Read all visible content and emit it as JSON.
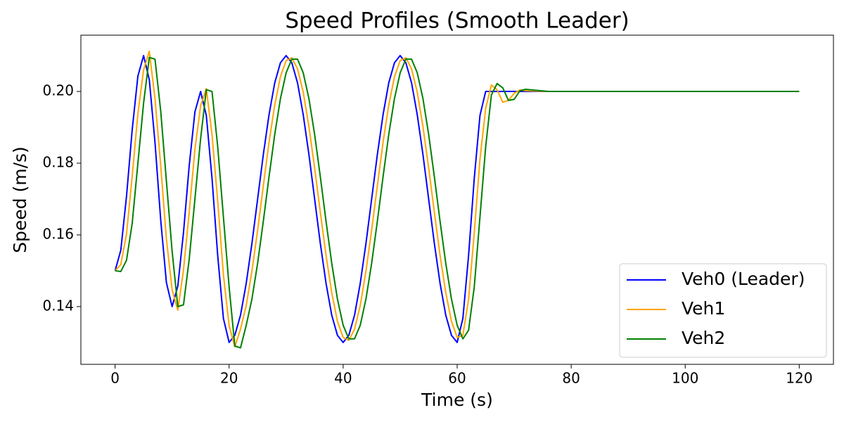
{
  "chart_data": {
    "type": "line",
    "title": "Speed Profiles (Smooth Leader)",
    "x_label": "Time (s)",
    "y_label": "Speed (m/s)",
    "x": [
      0,
      1,
      2,
      3,
      4,
      5,
      6,
      7,
      8,
      9,
      10,
      11,
      12,
      13,
      14,
      15,
      16,
      17,
      18,
      19,
      20,
      21,
      22,
      23,
      24,
      25,
      26,
      27,
      28,
      29,
      30,
      31,
      32,
      33,
      34,
      35,
      36,
      37,
      38,
      39,
      40,
      41,
      42,
      43,
      44,
      45,
      46,
      47,
      48,
      49,
      50,
      51,
      52,
      53,
      54,
      55,
      56,
      57,
      58,
      59,
      60,
      61,
      62,
      63,
      64,
      65,
      66,
      67,
      68,
      69,
      70,
      71,
      72,
      76,
      80,
      100,
      120
    ],
    "series": [
      {
        "name": "Veh0 (Leader)",
        "color": "#0000ff",
        "values": [
          0.15,
          0.1557,
          0.1707,
          0.1893,
          0.2043,
          0.21,
          0.2033,
          0.1858,
          0.1642,
          0.1467,
          0.14,
          0.1457,
          0.1607,
          0.1793,
          0.1943,
          0.2,
          0.1933,
          0.1758,
          0.1542,
          0.1367,
          0.13,
          0.132,
          0.1376,
          0.1465,
          0.1576,
          0.17,
          0.1824,
          0.1935,
          0.2024,
          0.208,
          0.21,
          0.208,
          0.2024,
          0.1935,
          0.1824,
          0.17,
          0.1576,
          0.1465,
          0.1376,
          0.132,
          0.13,
          0.132,
          0.1376,
          0.1465,
          0.1576,
          0.17,
          0.1824,
          0.1935,
          0.2024,
          0.208,
          0.21,
          0.208,
          0.2024,
          0.1935,
          0.1824,
          0.17,
          0.1576,
          0.1465,
          0.1376,
          0.132,
          0.13,
          0.1367,
          0.1542,
          0.1758,
          0.1933,
          0.2,
          0.2,
          0.2,
          0.2,
          0.2,
          0.2,
          0.2,
          0.2,
          0.2,
          0.2,
          0.2,
          0.2
        ]
      },
      {
        "name": "Veh1",
        "color": "#ffa500",
        "values": [
          0.15,
          0.1517,
          0.1602,
          0.1763,
          0.1938,
          0.206,
          0.2112,
          0.198,
          0.1794,
          0.1589,
          0.1447,
          0.139,
          0.1502,
          0.1663,
          0.1838,
          0.196,
          0.2008,
          0.188,
          0.1694,
          0.1489,
          0.1347,
          0.1288,
          0.1337,
          0.1403,
          0.1499,
          0.1613,
          0.1737,
          0.1858,
          0.1962,
          0.2041,
          0.2086,
          0.2094,
          0.2063,
          0.1998,
          0.1902,
          0.1787,
          0.1663,
          0.1543,
          0.1439,
          0.1359,
          0.1314,
          0.1306,
          0.1337,
          0.1403,
          0.1499,
          0.1613,
          0.1737,
          0.1858,
          0.1962,
          0.2041,
          0.2086,
          0.2094,
          0.2063,
          0.1998,
          0.1902,
          0.1787,
          0.1663,
          0.1543,
          0.1439,
          0.1359,
          0.1314,
          0.132,
          0.142,
          0.1606,
          0.1811,
          0.1953,
          0.2018,
          0.2005,
          0.197,
          0.1975,
          0.1995,
          0.2004,
          0.2002,
          0.2,
          0.2,
          0.2,
          0.2
        ]
      },
      {
        "name": "Veh2",
        "color": "#008000",
        "values": [
          0.15,
          0.1498,
          0.1529,
          0.1632,
          0.18,
          0.1968,
          0.2095,
          0.209,
          0.1946,
          0.175,
          0.1555,
          0.14,
          0.1405,
          0.1532,
          0.17,
          0.1868,
          0.2005,
          0.2,
          0.1846,
          0.165,
          0.1455,
          0.129,
          0.1285,
          0.1348,
          0.1421,
          0.1521,
          0.1638,
          0.1762,
          0.188,
          0.198,
          0.2052,
          0.209,
          0.209,
          0.2052,
          0.198,
          0.188,
          0.1762,
          0.1638,
          0.1521,
          0.1421,
          0.1348,
          0.131,
          0.131,
          0.1348,
          0.1421,
          0.1521,
          0.1638,
          0.1762,
          0.188,
          0.198,
          0.2052,
          0.209,
          0.209,
          0.2052,
          0.198,
          0.188,
          0.1762,
          0.1638,
          0.1521,
          0.1421,
          0.1348,
          0.131,
          0.1334,
          0.1455,
          0.165,
          0.1846,
          0.199,
          0.2022,
          0.201,
          0.1975,
          0.1978,
          0.2002,
          0.2006,
          0.2,
          0.2,
          0.2,
          0.2
        ]
      }
    ],
    "xlim": [
      -6,
      126
    ],
    "xticks": [
      0,
      20,
      40,
      60,
      80,
      100,
      120
    ],
    "ylim": [
      0.1239,
      0.2157
    ],
    "yticks": [
      0.14,
      0.16,
      0.18,
      {
        "value": 0.2,
        "label": "0.20"
      }
    ],
    "grid": false,
    "legend": "lower right"
  }
}
